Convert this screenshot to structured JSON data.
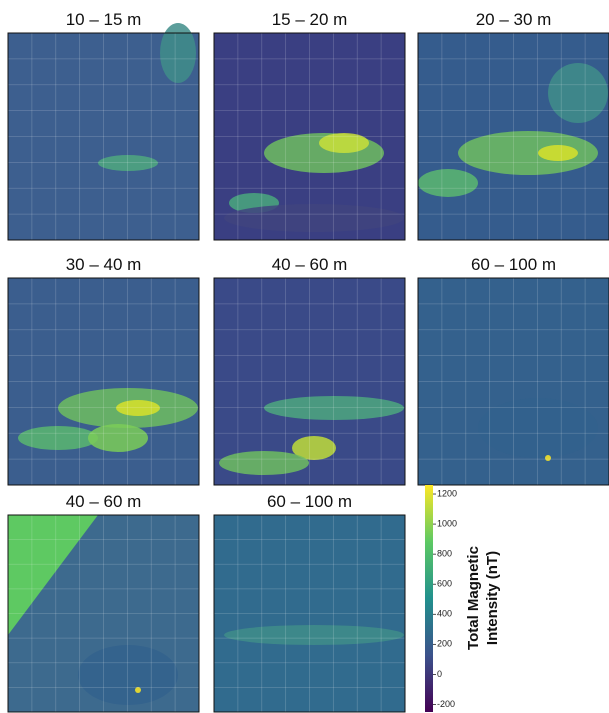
{
  "panels": [
    {
      "title": "10 – 15 m"
    },
    {
      "title": "15 – 20 m"
    },
    {
      "title": "20 – 30 m"
    },
    {
      "title": "30 – 40 m"
    },
    {
      "title": "40 – 60 m"
    },
    {
      "title": "60 – 100 m"
    },
    {
      "title": "40 – 60 m"
    },
    {
      "title": "60 – 100 m"
    }
  ],
  "colorbar": {
    "label": [
      "Total Magnetic",
      "Intensity (nT)"
    ],
    "lim": [
      -250,
      1260
    ],
    "ticks": [
      -200,
      0,
      200,
      400,
      600,
      800,
      1000,
      1200
    ]
  }
}
